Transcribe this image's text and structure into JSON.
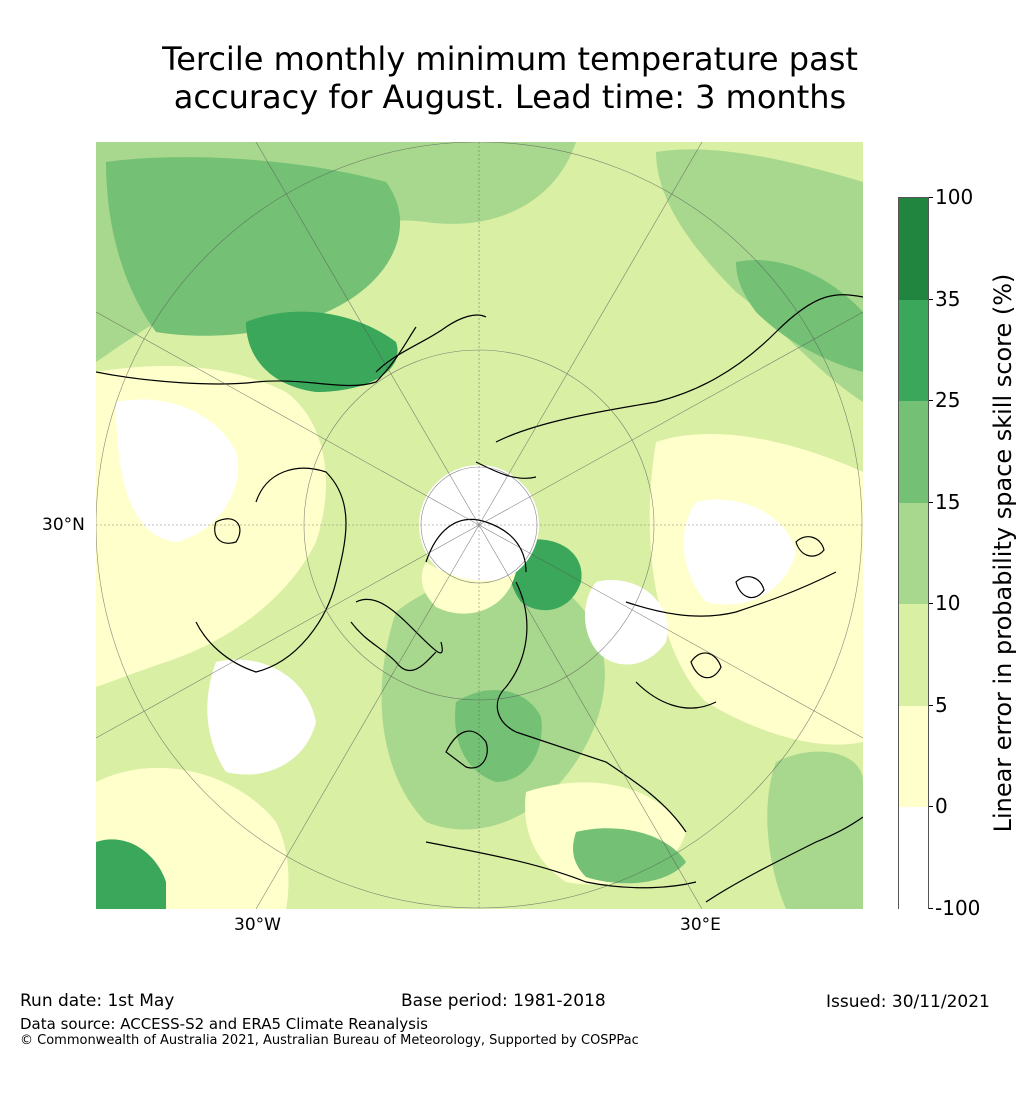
{
  "title_line1": "Tercile monthly minimum temperature past",
  "title_line2": "accuracy for August. Lead time: 3 months",
  "axis_labels": {
    "lon_left": "30°W",
    "lon_right": "30°E",
    "lat_left": "30°N"
  },
  "colorbar": {
    "label": "Linear error in probability space skill score (%)",
    "ticks": [
      "100",
      "35",
      "25",
      "15",
      "10",
      "5",
      "0",
      "-100"
    ],
    "colors": [
      "#21843f",
      "#3aa75a",
      "#74c176",
      "#a8d88d",
      "#d8efa4",
      "#ffffcc",
      "#ffffff"
    ]
  },
  "footer": {
    "run_date": "Run date: 1st May",
    "base_period": "Base period: 1981-2018",
    "issued": "Issued: 30/11/2021",
    "data_source": "Data source: ACCESS-S2 and ERA5 Climate Reanalysis",
    "copyright": "© Commonwealth of Australia 2021, Australian Bureau of Meteorology, Supported by COSPPac"
  }
}
